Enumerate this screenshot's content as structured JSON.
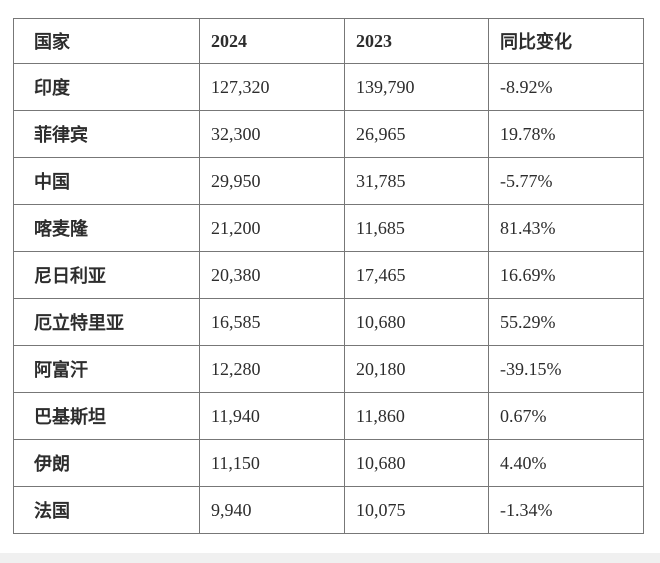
{
  "colors": {
    "text": "#2d2d2d",
    "border": "#777777",
    "background": "#ffffff",
    "footer_strip": "#f0f0f0"
  },
  "table": {
    "columns": [
      {
        "key": "country",
        "label": "国家"
      },
      {
        "key": "y2024",
        "label": "2024"
      },
      {
        "key": "y2023",
        "label": "2023"
      },
      {
        "key": "yoy",
        "label": "同比变化"
      }
    ],
    "rows": [
      {
        "country": "印度",
        "y2024": "127,320",
        "y2023": "139,790",
        "yoy": "-8.92%"
      },
      {
        "country": "菲律宾",
        "y2024": "32,300",
        "y2023": "26,965",
        "yoy": "19.78%"
      },
      {
        "country": "中国",
        "y2024": "29,950",
        "y2023": "31,785",
        "yoy": "-5.77%"
      },
      {
        "country": "喀麦隆",
        "y2024": "21,200",
        "y2023": "11,685",
        "yoy": "81.43%"
      },
      {
        "country": "尼日利亚",
        "y2024": "20,380",
        "y2023": "17,465",
        "yoy": "16.69%"
      },
      {
        "country": "厄立特里亚",
        "y2024": "16,585",
        "y2023": "10,680",
        "yoy": "55.29%"
      },
      {
        "country": "阿富汗",
        "y2024": "12,280",
        "y2023": "20,180",
        "yoy": "-39.15%"
      },
      {
        "country": "巴基斯坦",
        "y2024": "11,940",
        "y2023": "11,860",
        "yoy": "0.67%"
      },
      {
        "country": "伊朗",
        "y2024": "11,150",
        "y2023": "10,680",
        "yoy": "4.40%"
      },
      {
        "country": "法国",
        "y2024": "9,940",
        "y2023": "10,075",
        "yoy": "-1.34%"
      }
    ]
  },
  "chart_data": {
    "type": "table",
    "title": "",
    "columns": [
      "国家",
      "2024",
      "2023",
      "同比变化"
    ],
    "rows": [
      [
        "印度",
        127320,
        139790,
        "-8.92%"
      ],
      [
        "菲律宾",
        32300,
        26965,
        "19.78%"
      ],
      [
        "中国",
        29950,
        31785,
        "-5.77%"
      ],
      [
        "喀麦隆",
        21200,
        11685,
        "81.43%"
      ],
      [
        "尼日利亚",
        20380,
        17465,
        "16.69%"
      ],
      [
        "厄立特里亚",
        16585,
        10680,
        "55.29%"
      ],
      [
        "阿富汗",
        12280,
        20180,
        "-39.15%"
      ],
      [
        "巴基斯坦",
        11940,
        11860,
        "0.67%"
      ],
      [
        "伊朗",
        11150,
        10680,
        "4.40%"
      ],
      [
        "法国",
        9940,
        10075,
        "-1.34%"
      ]
    ]
  }
}
